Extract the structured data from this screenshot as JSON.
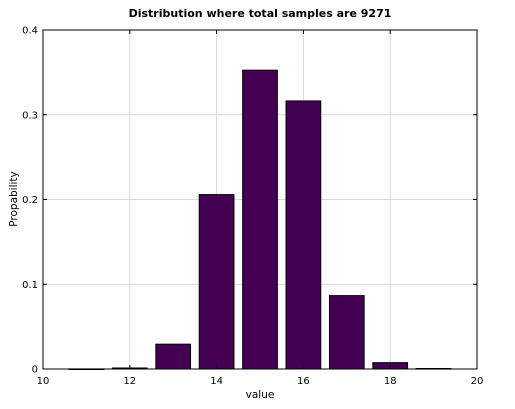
{
  "chart_data": {
    "type": "bar",
    "title": "Distribution where total samples are 9271",
    "xlabel": "value",
    "ylabel": "Propability",
    "xlim": [
      10,
      20
    ],
    "ylim": [
      0,
      0.4
    ],
    "xticks": [
      10,
      12,
      14,
      16,
      18,
      20
    ],
    "yticks": [
      0,
      0.1,
      0.2,
      0.3,
      0.4
    ],
    "xtick_labels": [
      "10",
      "12",
      "14",
      "16",
      "18",
      "20"
    ],
    "ytick_labels": [
      "0",
      "0.1",
      "0.2",
      "0.3",
      "0.4"
    ],
    "grid": true,
    "bar_color": "#440154",
    "bar_edge_color": "#000000",
    "bar_width": 0.8,
    "x": [
      11,
      12,
      13,
      14,
      15,
      16,
      17,
      18,
      19
    ],
    "values": [
      0.0001,
      0.0012,
      0.0293,
      0.2058,
      0.3526,
      0.3163,
      0.0866,
      0.0075,
      0.0006
    ]
  }
}
